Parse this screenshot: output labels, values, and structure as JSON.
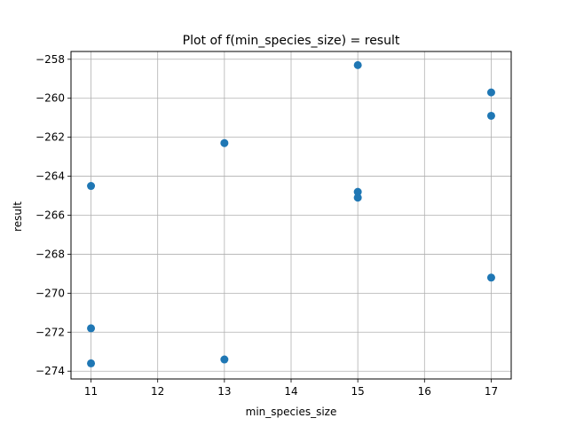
{
  "chart_data": {
    "type": "scatter",
    "title": "Plot of f(min_species_size) = result",
    "xlabel": "min_species_size",
    "ylabel": "result",
    "xlim": [
      10.7,
      17.3
    ],
    "ylim": [
      -274.4,
      -257.6
    ],
    "xticks": [
      11,
      12,
      13,
      14,
      15,
      16,
      17
    ],
    "yticks": [
      -274,
      -272,
      -270,
      -268,
      -266,
      -264,
      -262,
      -260,
      -258
    ],
    "grid": true,
    "color": "#1f77b4",
    "points": [
      {
        "x": 11,
        "y": -264.5
      },
      {
        "x": 11,
        "y": -271.8
      },
      {
        "x": 11,
        "y": -273.6
      },
      {
        "x": 13,
        "y": -262.3
      },
      {
        "x": 13,
        "y": -273.4
      },
      {
        "x": 15,
        "y": -258.3
      },
      {
        "x": 15,
        "y": -264.8
      },
      {
        "x": 15,
        "y": -265.1
      },
      {
        "x": 17,
        "y": -259.7
      },
      {
        "x": 17,
        "y": -260.9
      },
      {
        "x": 17,
        "y": -269.2
      }
    ]
  }
}
